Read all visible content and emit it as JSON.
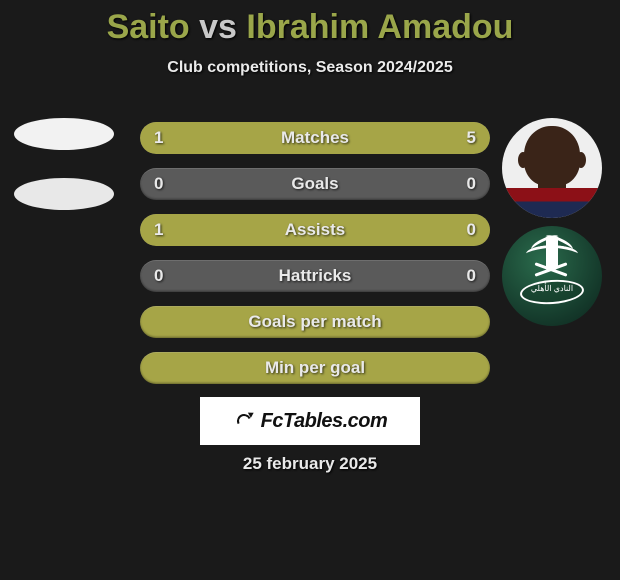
{
  "title": {
    "left": "Saito",
    "vs": "vs",
    "right": "Ibrahim Amadou"
  },
  "subtitle": "Club competitions, Season 2024/2025",
  "bars": [
    {
      "label": "Matches",
      "left_val": "1",
      "right_val": "5",
      "left_pct": 17,
      "right_pct": 83
    },
    {
      "label": "Goals",
      "left_val": "0",
      "right_val": "0",
      "left_pct": 0,
      "right_pct": 0
    },
    {
      "label": "Assists",
      "left_val": "1",
      "right_val": "0",
      "left_pct": 100,
      "right_pct": 0
    },
    {
      "label": "Hattricks",
      "left_val": "0",
      "right_val": "0",
      "left_pct": 0,
      "right_pct": 0
    },
    {
      "label": "Goals per match",
      "left_val": "",
      "right_val": "",
      "left_pct": 100,
      "right_pct": 0,
      "full": true
    },
    {
      "label": "Min per goal",
      "left_val": "",
      "right_val": "",
      "left_pct": 100,
      "right_pct": 0,
      "full": true
    }
  ],
  "badge_text": "FcTables.com",
  "date": "25 february 2025",
  "colors": {
    "accent": "#a6a547",
    "bar_bg": "#5a5a5a",
    "title_accent": "#9aa64a"
  }
}
